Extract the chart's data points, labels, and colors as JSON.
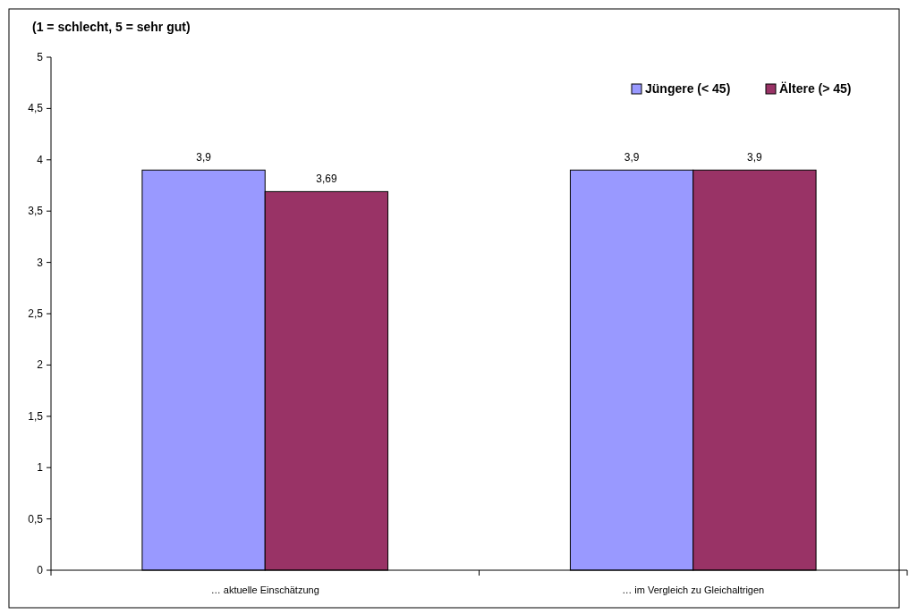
{
  "chart_data": {
    "type": "bar",
    "title": "(1 = schlecht, 5 = sehr gut)",
    "categories": [
      "… aktuelle Einschätzung",
      "… im Vergleich zu Gleichaltrigen"
    ],
    "series": [
      {
        "name": "Jüngere (< 45)",
        "color": "#9999ff",
        "values": [
          3.9,
          3.9
        ],
        "value_labels": [
          "3,9",
          "3,9"
        ]
      },
      {
        "name": "Ältere (> 45)",
        "color": "#993366",
        "values": [
          3.69,
          3.9
        ],
        "value_labels": [
          "3,69",
          "3,9"
        ]
      }
    ],
    "ylim": [
      0,
      5
    ],
    "yticks": [
      0,
      {
        "value": 0.5,
        "label": "0,5"
      },
      1,
      {
        "value": 1.5,
        "label": "1,5"
      },
      2,
      {
        "value": 2.5,
        "label": "2,5"
      },
      3,
      {
        "value": 3.5,
        "label": "3,5"
      },
      4,
      {
        "value": 4.5,
        "label": "4,5"
      },
      5
    ],
    "grid": false,
    "legend": "top right"
  }
}
